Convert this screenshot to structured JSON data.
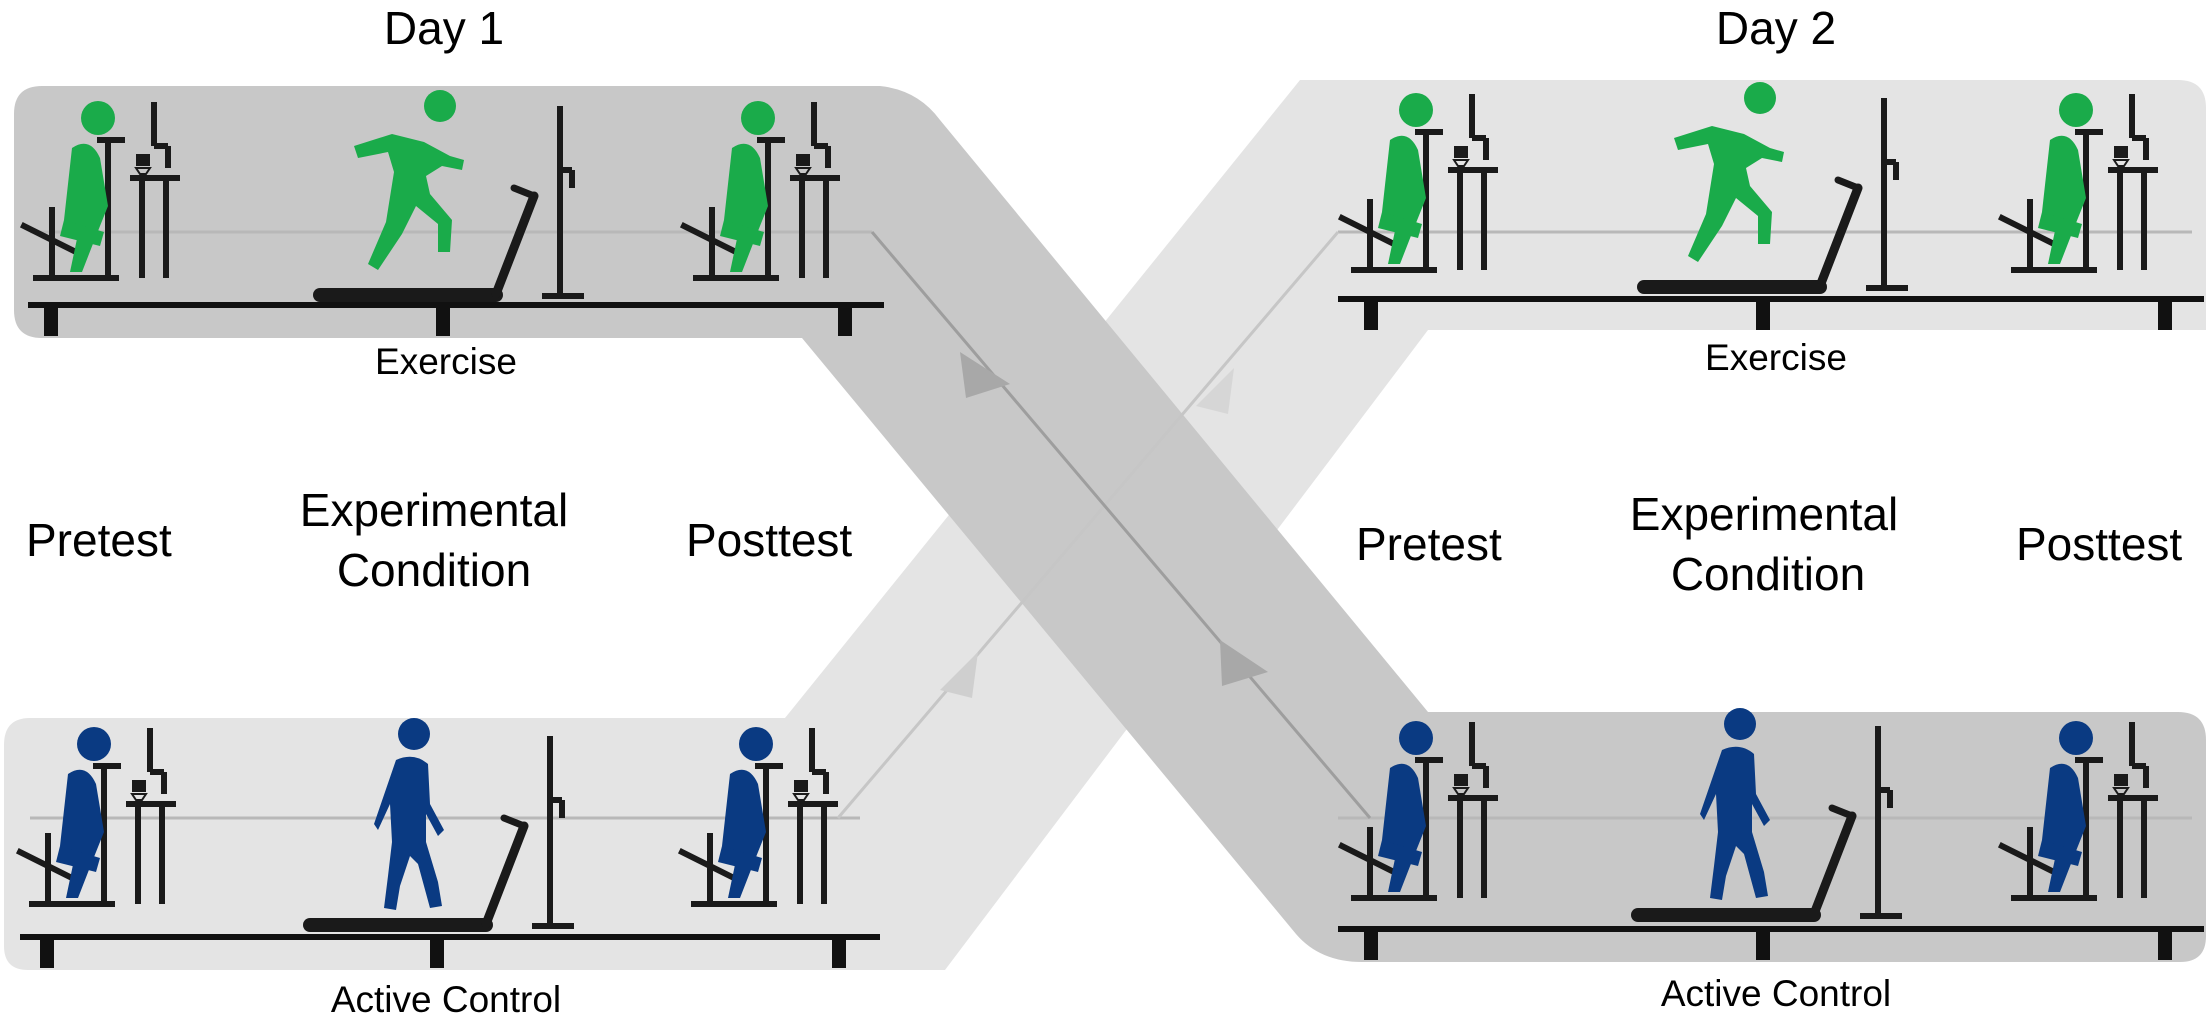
{
  "days": [
    {
      "title": "Day 1",
      "top_condition": "Exercise",
      "bottom_condition": "Active Control",
      "phases": [
        "Pretest",
        "Experimental",
        "Condition",
        "Posttest"
      ]
    },
    {
      "title": "Day 2",
      "top_condition": "Exercise",
      "bottom_condition": "Active Control",
      "phases": [
        "Pretest",
        "Experimental",
        "Condition",
        "Posttest"
      ]
    }
  ],
  "colors": {
    "exercise": "#1aab4a",
    "control": "#0a3a82",
    "band_dark": "#c8c8c8",
    "band_light": "#e4e4e4",
    "equipment": "#1a1a1a",
    "arrow_light": "#cfcfcf",
    "arrow_dark": "#a8a8a8"
  },
  "icons": [
    "seated-person-icon",
    "computer-desk-icon",
    "treadmill-icon",
    "running-person-icon",
    "walking-person-icon",
    "flow-arrow-icon"
  ]
}
